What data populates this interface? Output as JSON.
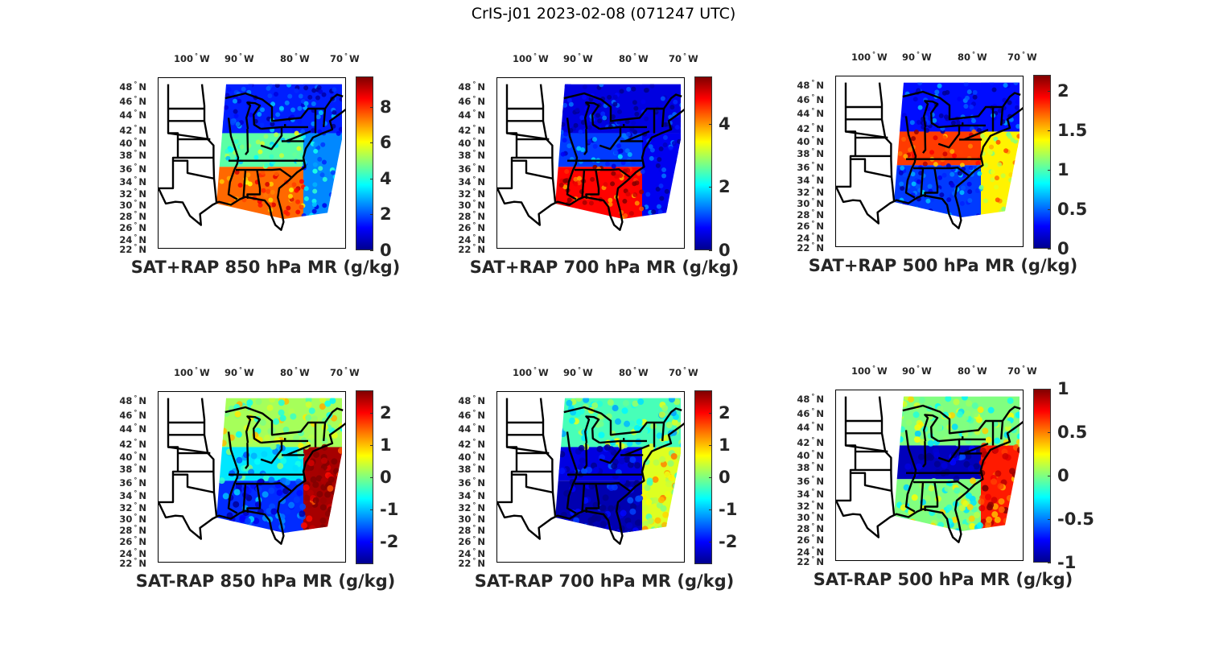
{
  "title": "CrIS-j01 2023-02-08 (071247 UTC)",
  "colormap": [
    "#00008f",
    "#0000ff",
    "#0080ff",
    "#00ffff",
    "#80ff80",
    "#ffff00",
    "#ff8000",
    "#ff0000",
    "#800000"
  ],
  "chart_data": [
    {
      "type": "heatmap",
      "title": "SAT+RAP 850 hPa MR (g/kg)",
      "xlabel": "",
      "ylabel": "",
      "x_ticks": [
        "100° W",
        "90° W",
        "80° W",
        "70° W"
      ],
      "y_ticks": [
        "48° N",
        "46° N",
        "44° N",
        "42° N",
        "40° N",
        "38° N",
        "36° N",
        "34° N",
        "32° N",
        "30° N",
        "28° N",
        "26° N",
        "24° N",
        "22° N"
      ],
      "colorbar": {
        "range": [
          0,
          9.7
        ],
        "ticks": [
          "0",
          "2",
          "4",
          "6",
          "8"
        ],
        "tick_values": [
          0,
          2,
          4,
          6,
          8
        ]
      },
      "swath": {
        "west_lon_top": -92,
        "east_lon": -68,
        "lat_range": [
          26,
          49
        ]
      },
      "fields": [
        {
          "region": "north",
          "value": 1.5
        },
        {
          "region": "central",
          "value": 4.5
        },
        {
          "region": "south",
          "value": 7.5
        },
        {
          "region": "atlantic",
          "value": 2.5
        }
      ]
    },
    {
      "type": "heatmap",
      "title": "SAT+RAP 700 hPa MR (g/kg)",
      "xlabel": "",
      "ylabel": "",
      "x_ticks": [
        "100° W",
        "90° W",
        "80° W",
        "70° W"
      ],
      "y_ticks": [
        "48° N",
        "46° N",
        "44° N",
        "42° N",
        "40° N",
        "38° N",
        "36° N",
        "34° N",
        "32° N",
        "30° N",
        "28° N",
        "26° N",
        "24° N",
        "22° N"
      ],
      "colorbar": {
        "range": [
          0,
          5.5
        ],
        "ticks": [
          "0",
          "2",
          "4"
        ],
        "tick_values": [
          0,
          2,
          4
        ]
      },
      "swath": {
        "west_lon_top": -92,
        "east_lon": -68,
        "lat_range": [
          26,
          49
        ]
      },
      "fields": [
        {
          "region": "north",
          "value": 0.5
        },
        {
          "region": "central",
          "value": 1.0
        },
        {
          "region": "south",
          "value": 4.8
        },
        {
          "region": "atlantic",
          "value": 0.6
        }
      ]
    },
    {
      "type": "heatmap",
      "title": "SAT+RAP 500 hPa MR (g/kg)",
      "xlabel": "",
      "ylabel": "",
      "x_ticks": [
        "100° W",
        "90° W",
        "80° W",
        "70° W"
      ],
      "y_ticks": [
        "48° N",
        "46° N",
        "44° N",
        "42° N",
        "40° N",
        "38° N",
        "36° N",
        "34° N",
        "32° N",
        "30° N",
        "28° N",
        "26° N",
        "24° N",
        "22° N"
      ],
      "colorbar": {
        "range": [
          0,
          2.2
        ],
        "ticks": [
          "0",
          "0.5",
          "1",
          "1.5",
          "2"
        ],
        "tick_values": [
          0,
          0.5,
          1,
          1.5,
          2
        ]
      },
      "swath": {
        "west_lon_top": -92,
        "east_lon": -68,
        "lat_range": [
          26,
          49
        ]
      },
      "fields": [
        {
          "region": "north",
          "value": 0.3
        },
        {
          "region": "central",
          "value": 1.8
        },
        {
          "region": "south",
          "value": 0.4
        },
        {
          "region": "atlantic",
          "value": 1.4
        }
      ]
    },
    {
      "type": "heatmap",
      "title": "SAT-RAP 850 hPa MR (g/kg)",
      "xlabel": "",
      "ylabel": "",
      "x_ticks": [
        "100° W",
        "90° W",
        "80° W",
        "70° W"
      ],
      "y_ticks": [
        "48° N",
        "46° N",
        "44° N",
        "42° N",
        "40° N",
        "38° N",
        "36° N",
        "34° N",
        "32° N",
        "30° N",
        "28° N",
        "26° N",
        "24° N",
        "22° N"
      ],
      "colorbar": {
        "range": [
          -2.7,
          2.7
        ],
        "ticks": [
          "-2",
          "-1",
          "0",
          "1",
          "2"
        ],
        "tick_values": [
          -2,
          -1,
          0,
          1,
          2
        ]
      },
      "swath": {
        "west_lon_top": -92,
        "east_lon": -68,
        "lat_range": [
          26,
          49
        ]
      },
      "fields": [
        {
          "region": "north",
          "value": 0.2
        },
        {
          "region": "central",
          "value": -0.8
        },
        {
          "region": "south",
          "value": -1.8
        },
        {
          "region": "atlantic",
          "value": 2.5
        }
      ]
    },
    {
      "type": "heatmap",
      "title": "SAT-RAP 700 hPa MR (g/kg)",
      "xlabel": "",
      "ylabel": "",
      "x_ticks": [
        "100° W",
        "90° W",
        "80° W",
        "70° W"
      ],
      "y_ticks": [
        "48° N",
        "46° N",
        "44° N",
        "42° N",
        "40° N",
        "38° N",
        "36° N",
        "34° N",
        "32° N",
        "30° N",
        "28° N",
        "26° N",
        "24° N",
        "22° N"
      ],
      "colorbar": {
        "range": [
          -2.7,
          2.7
        ],
        "ticks": [
          "-2",
          "-1",
          "0",
          "1",
          "2"
        ],
        "tick_values": [
          -2,
          -1,
          0,
          1,
          2
        ]
      },
      "swath": {
        "west_lon_top": -92,
        "east_lon": -68,
        "lat_range": [
          26,
          49
        ]
      },
      "fields": [
        {
          "region": "north",
          "value": -0.3
        },
        {
          "region": "central",
          "value": -2.2
        },
        {
          "region": "south",
          "value": -2.5
        },
        {
          "region": "atlantic",
          "value": 0.5
        }
      ]
    },
    {
      "type": "heatmap",
      "title": "SAT-RAP 500 hPa MR (g/kg)",
      "xlabel": "",
      "ylabel": "",
      "x_ticks": [
        "100° W",
        "90° W",
        "80° W",
        "70° W"
      ],
      "y_ticks": [
        "48° N",
        "46° N",
        "44° N",
        "42° N",
        "40° N",
        "38° N",
        "36° N",
        "34° N",
        "32° N",
        "30° N",
        "28° N",
        "26° N",
        "24° N",
        "22° N"
      ],
      "colorbar": {
        "range": [
          -1,
          1
        ],
        "ticks": [
          "-1",
          "-0.5",
          "0",
          "0.5",
          "1"
        ],
        "tick_values": [
          -1,
          -0.5,
          0,
          0.5,
          1
        ]
      },
      "swath": {
        "west_lon_top": -92,
        "east_lon": -68,
        "lat_range": [
          26,
          49
        ]
      },
      "fields": [
        {
          "region": "north",
          "value": 0.0
        },
        {
          "region": "central",
          "value": -0.9
        },
        {
          "region": "south",
          "value": 0.0
        },
        {
          "region": "atlantic",
          "value": 0.7
        }
      ]
    }
  ]
}
